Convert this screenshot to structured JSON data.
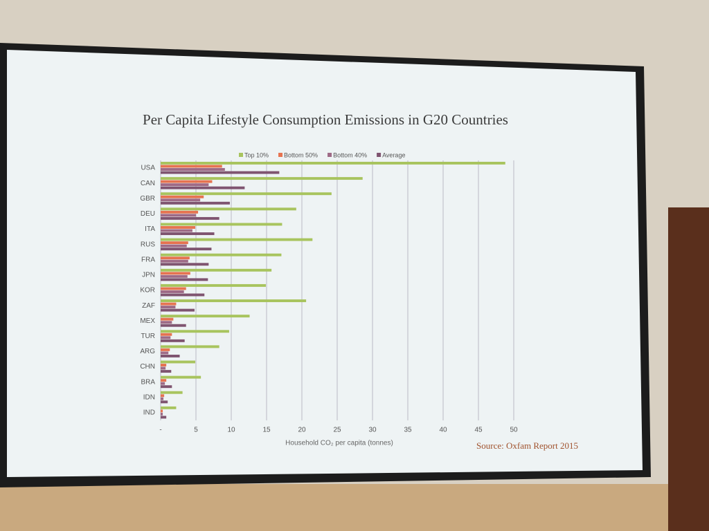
{
  "chart_data": {
    "type": "hbar",
    "title": "Per Capita Lifestyle Consumption Emissions in G20 Countries",
    "x_label": "Household CO₂ per capita (tonnes)",
    "source": "Source: Oxfam Report 2015",
    "categories": [
      "USA",
      "CAN",
      "GBR",
      "DEU",
      "ITA",
      "RUS",
      "FRA",
      "JPN",
      "KOR",
      "ZAF",
      "MEX",
      "TUR",
      "ARG",
      "CHN",
      "BRA",
      "IDN",
      "IND"
    ],
    "series": [
      {
        "name": "Top 10%",
        "color": "#a8c45e",
        "values": [
          48.8,
          28.6,
          24.2,
          19.2,
          17.2,
          21.5,
          17.1,
          15.7,
          14.9,
          20.6,
          12.6,
          9.7,
          8.3,
          4.9,
          5.7,
          3.1,
          2.2
        ]
      },
      {
        "name": "Bottom 50%",
        "color": "#e67350",
        "values": [
          8.7,
          7.3,
          6.1,
          5.3,
          4.9,
          3.9,
          4.1,
          4.2,
          3.6,
          2.2,
          1.8,
          1.6,
          1.3,
          0.8,
          0.8,
          0.5,
          0.3
        ]
      },
      {
        "name": "Bottom 40%",
        "color": "#9e6a86",
        "values": [
          9.1,
          6.8,
          5.6,
          5.0,
          4.5,
          3.7,
          3.9,
          3.8,
          3.3,
          2.1,
          1.6,
          1.4,
          1.1,
          0.7,
          0.6,
          0.4,
          0.3
        ]
      },
      {
        "name": "Average",
        "color": "#7f5470",
        "values": [
          16.8,
          11.9,
          9.8,
          8.3,
          7.6,
          7.2,
          6.8,
          6.7,
          6.2,
          4.8,
          3.6,
          3.4,
          2.7,
          1.5,
          1.6,
          1.0,
          0.8
        ]
      }
    ],
    "xlim": [
      0,
      50
    ],
    "xticks": [
      {
        "value": 0,
        "label": "-"
      },
      5,
      10,
      15,
      20,
      25,
      30,
      35,
      40,
      45,
      50
    ],
    "grid": true,
    "legend": "top"
  }
}
